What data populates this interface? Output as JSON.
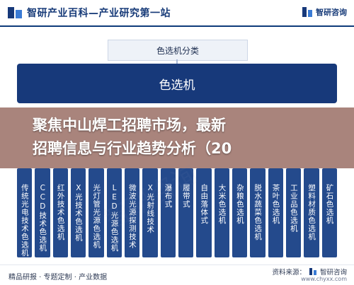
{
  "header": {
    "title": "智研产业百科—产业研究第一站",
    "brand": "智研咨询"
  },
  "diagram": {
    "category_title": "色选机分类",
    "root": "色选机",
    "types": [
      "传统光电技术色选机",
      "CCD技术色选机",
      "红外技术色选机",
      "X光技术色选机",
      "光灯管光源色选机",
      "LED光源色选机",
      "微波光源探测技术",
      "X光射线技术",
      "瀑布式",
      "履带式",
      "自由落体式",
      "大米色选机",
      "杂粮色选机",
      "脱水蔬菜色选机",
      "茶叶色选机",
      "工业品色选机",
      "塑料材质色选机",
      "矿石色选机"
    ]
  },
  "overlay": {
    "line1": "聚焦中山焊工招聘市场，最新",
    "line2": "招聘信息与行业趋势分析（20"
  },
  "footer": {
    "left": "精品研报 · 专题定制 · 产业数据",
    "source_label": "资料来源：",
    "source_brand": "智研咨询",
    "url": "www.chyxx.com"
  },
  "colors": {
    "primary": "#17397a",
    "column": "#244a8c",
    "banner": "#96695f"
  }
}
